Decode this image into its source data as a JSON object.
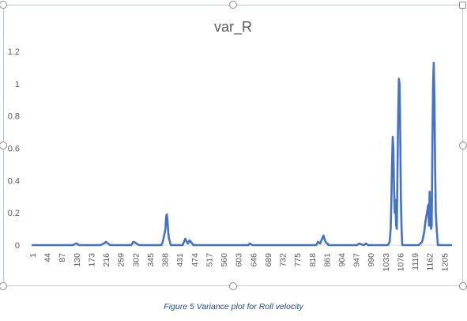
{
  "chart_data": {
    "type": "line",
    "title": "var_R",
    "xlabel": "",
    "ylabel": "",
    "ylim": [
      0,
      1.2
    ],
    "yticks": [
      "0",
      "0.2",
      "0.4",
      "0.6",
      "0.8",
      "1",
      "1.2"
    ],
    "xticks": [
      "1",
      "44",
      "87",
      "130",
      "173",
      "216",
      "259",
      "302",
      "345",
      "388",
      "431",
      "474",
      "517",
      "560",
      "603",
      "646",
      "689",
      "732",
      "775",
      "818",
      "861",
      "904",
      "947",
      "990",
      "1033",
      "1076",
      "1119",
      "1162",
      "1205"
    ],
    "xlim": [
      1,
      1225
    ],
    "grid": false,
    "legend": "none",
    "line_color": "#4472c4",
    "series": [
      {
        "x": [
          1,
          120,
          128,
          132,
          136,
          200,
          210,
          216,
          222,
          228,
          290,
          296,
          302,
          308,
          314,
          378,
          382,
          386,
          390,
          392,
          394,
          396,
          398,
          400,
          402,
          404,
          406,
          440,
          444,
          448,
          452,
          456,
          460,
          464,
          468,
          472,
          632,
          636,
          640,
          644,
          830,
          836,
          842,
          846,
          850,
          852,
          854,
          858,
          862,
          864,
          866,
          870,
          950,
          956,
          962,
          970,
          976,
          982,
          1030,
          1040,
          1045,
          1048,
          1050,
          1052,
          1054,
          1056,
          1058,
          1060,
          1062,
          1064,
          1066,
          1068,
          1070,
          1072,
          1074,
          1076,
          1078,
          1080,
          1082,
          1120,
          1130,
          1140,
          1146,
          1150,
          1154,
          1158,
          1160,
          1162,
          1164,
          1166,
          1168,
          1170,
          1172,
          1174,
          1176,
          1178,
          1180,
          1182,
          1184,
          1186,
          1225
        ],
        "y": [
          0,
          0,
          0.01,
          0.01,
          0,
          0,
          0.01,
          0.02,
          0.01,
          0,
          0,
          0.02,
          0.015,
          0.005,
          0,
          0,
          0.02,
          0.06,
          0.1,
          0.18,
          0.19,
          0.15,
          0.08,
          0.04,
          0.03,
          0.01,
          0,
          0,
          0.02,
          0.04,
          0.02,
          0.01,
          0.03,
          0.02,
          0.01,
          0,
          0,
          0.01,
          0.005,
          0,
          0,
          0.02,
          0.01,
          0.03,
          0.05,
          0.06,
          0.04,
          0.02,
          0.01,
          0.01,
          0,
          0,
          0,
          0.01,
          0.005,
          0,
          0.01,
          0,
          0,
          0,
          0.02,
          0.1,
          0.25,
          0.5,
          0.67,
          0.6,
          0.35,
          0.2,
          0.28,
          0.12,
          0.1,
          0.45,
          0.8,
          1.03,
          1.0,
          0.7,
          0.3,
          0.1,
          0,
          0,
          0,
          0.02,
          0.08,
          0.15,
          0.2,
          0.25,
          0.12,
          0.33,
          0.2,
          0.1,
          0.12,
          0.6,
          1.0,
          1.13,
          0.9,
          0.5,
          0.2,
          0.12,
          0.06,
          0,
          0
        ]
      }
    ]
  },
  "caption": "Figure 5 Variance plot for Roll velocity"
}
